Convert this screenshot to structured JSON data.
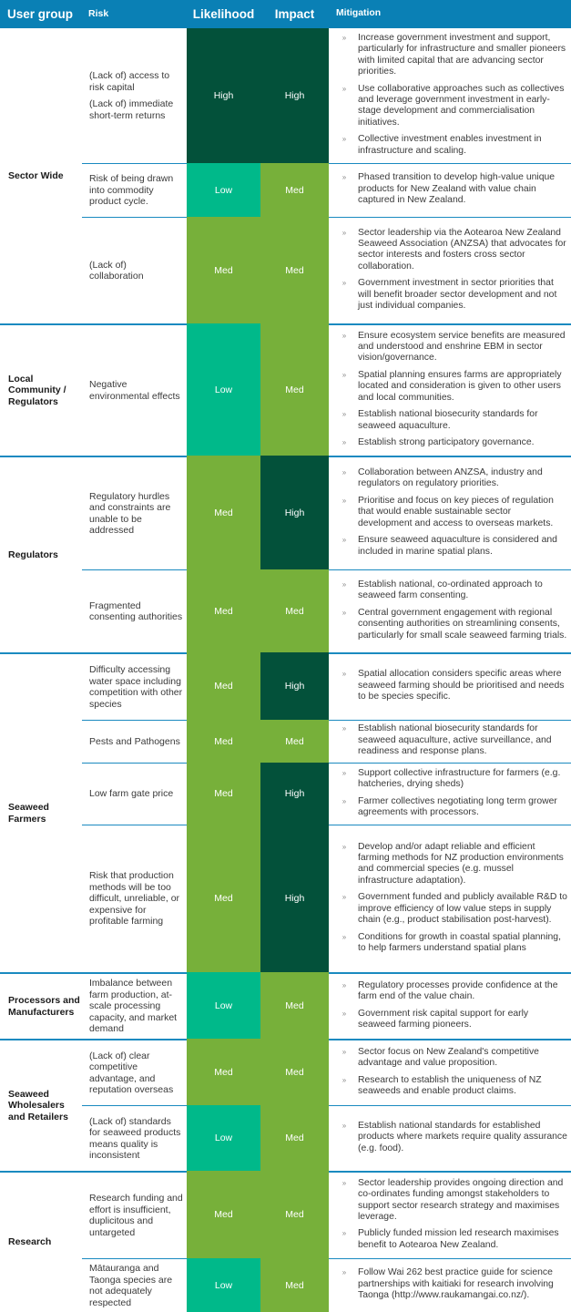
{
  "header": {
    "user_group": "User group",
    "risk": "Risk",
    "likelihood": "Likelihood",
    "impact": "Impact",
    "mitigation": "Mitigation"
  },
  "colors": {
    "header": "#0a80b5",
    "High": "#03513a",
    "Med": "#77b03a",
    "Low": "#00b98a"
  },
  "bullet_icon": "»",
  "groups": [
    {
      "label": "Sector Wide",
      "rows": [
        {
          "risk": [
            "(Lack of) access to risk capital",
            "(Lack of) immediate short-term returns"
          ],
          "likelihood": "High",
          "impact": "High",
          "mitigation": [
            "Increase government investment and support, particularly for infrastructure and smaller pioneers with limited capital that are advancing sector priorities.",
            "Use collaborative approaches such as collectives and leverage government investment in early-stage development and commercialisation initiatives.",
            "Collective investment enables investment in infrastructure and scaling."
          ]
        },
        {
          "risk": [
            "Risk of being drawn into commodity product cycle."
          ],
          "likelihood": "Low",
          "impact": "Med",
          "mitigation": [
            "Phased transition to develop high-value unique products for New Zealand with value chain captured in New Zealand."
          ]
        },
        {
          "risk": [
            "(Lack of) collaboration"
          ],
          "likelihood": "Med",
          "impact": "Med",
          "mitigation": [
            "Sector leadership via the Aotearoa New Zealand Seaweed Association (ANZSA) that advocates for sector interests and fosters cross sector collaboration.",
            "Government investment in sector priorities that will benefit broader sector development and not just individual companies."
          ]
        }
      ]
    },
    {
      "label": "Local Community / Regulators",
      "rows": [
        {
          "risk": [
            "Negative environmental effects"
          ],
          "likelihood": "Low",
          "impact": "Med",
          "mitigation": [
            "Ensure ecosystem service benefits are measured and understood and enshrine EBM in sector vision/governance.",
            "Spatial planning ensures farms are appropriately located and consideration is given to other users and local communities.",
            "Establish national biosecurity standards for seaweed aquaculture.",
            "Establish strong participatory governance."
          ]
        }
      ]
    },
    {
      "label": "Regulators",
      "rows": [
        {
          "risk": [
            "Regulatory hurdles and constraints are unable to be addressed"
          ],
          "likelihood": "Med",
          "impact": "High",
          "mitigation": [
            "Collaboration between ANZSA, industry and regulators on regulatory priorities.",
            "Prioritise and focus on key pieces of regulation that would enable sustainable sector development and access to overseas markets.",
            "Ensure seaweed aquaculture is considered and included in marine spatial plans."
          ]
        },
        {
          "risk": [
            "Fragmented consenting authorities"
          ],
          "likelihood": "Med",
          "impact": "Med",
          "mitigation": [
            "Establish national, co-ordinated approach to seaweed farm consenting.",
            "Central government engagement with regional consenting authorities on streamlining consents, particularly for small scale seaweed farming trials."
          ]
        }
      ]
    },
    {
      "label": "Seaweed Farmers",
      "rows": [
        {
          "risk": [
            "Difficulty accessing water space including competition with other species"
          ],
          "likelihood": "Med",
          "impact": "High",
          "mitigation": [
            "Spatial allocation considers specific areas where seaweed farming should be prioritised and needs to be species specific."
          ]
        },
        {
          "risk": [
            "Pests and Pathogens"
          ],
          "likelihood": "Med",
          "impact": "Med",
          "mitigation": [
            "Establish national biosecurity standards for seaweed aquaculture, active surveillance, and readiness and response plans."
          ]
        },
        {
          "risk": [
            "Low farm gate price"
          ],
          "likelihood": "Med",
          "impact": "High",
          "mitigation": [
            "Support collective infrastructure for farmers (e.g. hatcheries, drying sheds)",
            "Farmer collectives negotiating long term grower agreements with processors."
          ]
        },
        {
          "risk": [
            "Risk that production methods will be too difficult, unreliable, or expensive for profitable farming"
          ],
          "likelihood": "Med",
          "impact": "High",
          "mitigation": [
            "Develop and/or adapt reliable and efficient farming methods for NZ production environments and commercial species (e.g. mussel infrastructure adaptation).",
            "Government funded and publicly available R&D to improve efficiency of low value steps in supply chain (e.g., product stabilisation post-harvest).",
            "Conditions for growth in coastal spatial planning, to help farmers understand spatial plans"
          ]
        }
      ]
    },
    {
      "label": "Processors and Manufacturers",
      "rows": [
        {
          "risk": [
            "Imbalance between farm production, at-scale processing capacity, and market demand"
          ],
          "likelihood": "Low",
          "impact": "Med",
          "mitigation": [
            "Regulatory processes provide confidence at the farm end of the value chain.",
            "Government risk capital support for early seaweed farming pioneers."
          ]
        }
      ]
    },
    {
      "label": "Seaweed Wholesalers and Retailers",
      "rows": [
        {
          "risk": [
            "(Lack of) clear competitive advantage, and reputation overseas"
          ],
          "likelihood": "Med",
          "impact": "Med",
          "mitigation": [
            "Sector focus on New Zealand's competitive advantage and value proposition.",
            "Research to establish the uniqueness of NZ seaweeds and enable product claims."
          ]
        },
        {
          "risk": [
            "(Lack of) standards for seaweed products means quality is inconsistent"
          ],
          "likelihood": "Low",
          "impact": "Med",
          "mitigation": [
            "Establish national standards for established products where markets require quality assurance (e.g. food)."
          ]
        }
      ]
    },
    {
      "label": "Research",
      "rows": [
        {
          "risk": [
            "Research funding and effort is insufficient, duplicitous and untargeted"
          ],
          "likelihood": "Med",
          "impact": "Med",
          "mitigation": [
            "Sector leadership provides ongoing direction and co-ordinates funding amongst stakeholders to support sector research strategy and maximises leverage.",
            "Publicly funded mission led research maximises benefit to Aotearoa New Zealand."
          ]
        },
        {
          "risk": [
            "Mātauranga and Taonga species are not adequately respected"
          ],
          "likelihood": "Low",
          "impact": "Med",
          "mitigation": [
            "Follow Wai 262 best practice guide for science partnerships with kaitiaki for research involving Taonga (http://www.raukamangai.co.nz/)."
          ]
        }
      ]
    }
  ]
}
